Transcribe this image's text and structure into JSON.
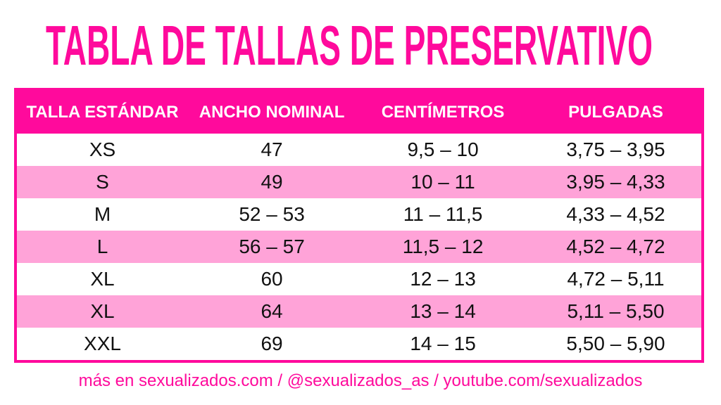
{
  "title": "TABLA DE TALLAS DE PRESERVATIVO",
  "colors": {
    "accent": "#ff0a9c",
    "row_alt": "#ffa3d8",
    "row": "#ffffff"
  },
  "chart_data": {
    "type": "table",
    "title": "TABLA DE TALLAS DE PRESERVATIVO",
    "columns": [
      "TALLA ESTÁNDAR",
      "ANCHO NOMINAL",
      "CENTÍMETROS",
      "PULGADAS"
    ],
    "rows": [
      [
        "XS",
        "47",
        "9,5 – 10",
        "3,75 – 3,95"
      ],
      [
        "S",
        "49",
        "10 – 11",
        "3,95 – 4,33"
      ],
      [
        "M",
        "52 – 53",
        "11 – 11,5",
        "4,33 – 4,52"
      ],
      [
        "L",
        "56 – 57",
        "11,5 – 12",
        "4,52 – 4,72"
      ],
      [
        "XL",
        "60",
        "12 – 13",
        "4,72 – 5,11"
      ],
      [
        "XL",
        "64",
        "13 – 14",
        "5,11 – 5,50"
      ],
      [
        "XXL",
        "69",
        "14 – 15",
        "5,50 – 5,90"
      ]
    ]
  },
  "footer": "más en sexualizados.com / @sexualizados_as / youtube.com/sexualizados"
}
